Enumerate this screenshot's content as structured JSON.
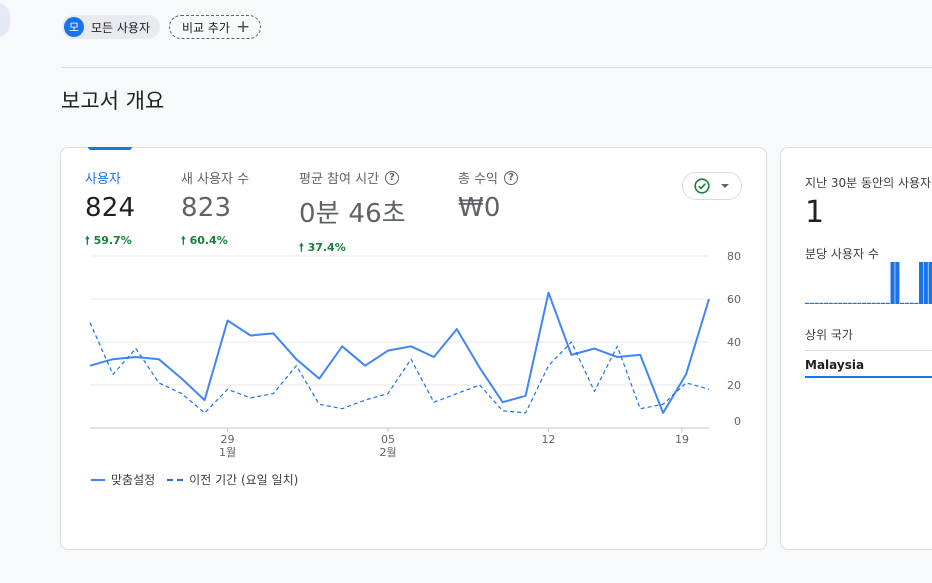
{
  "header": {
    "all_users_badge": "모",
    "all_users_label": "모든 사용자",
    "add_compare_label": "비교 추가",
    "add_compare_icon": "plus-icon"
  },
  "page_title": "보고서 개요",
  "metrics": [
    {
      "label": "사용자",
      "value": "824",
      "delta": "59.7%"
    },
    {
      "label": "새 사용자 수",
      "value": "823",
      "delta": "60.4%"
    },
    {
      "label": "평균 참여 시간",
      "value": "0분 46초",
      "delta": "37.4%"
    },
    {
      "label": "총 수익",
      "value": "₩0"
    }
  ],
  "status_icons": {
    "check": "check-circle-icon",
    "dropdown": "caret-down-icon"
  },
  "chart_data": {
    "type": "line",
    "x_tick_labels": [
      {
        "day": "29",
        "month": "1월"
      },
      {
        "day": "05",
        "month": "2월"
      },
      {
        "day": "12",
        "month": ""
      },
      {
        "day": "19",
        "month": ""
      }
    ],
    "y_ticks": [
      0,
      20,
      40,
      60,
      80
    ],
    "ylim": [
      0,
      80
    ],
    "x_range_days": [
      "01-23",
      "02-21"
    ],
    "series": [
      {
        "name": "맞춤설정",
        "style": "solid",
        "color": "#4285f4",
        "values": [
          29,
          32,
          33,
          32,
          23,
          13,
          50,
          43,
          44,
          32,
          23,
          38,
          29,
          36,
          38,
          33,
          46,
          28,
          12,
          15,
          63,
          34,
          37,
          33,
          34,
          7,
          25,
          60
        ]
      },
      {
        "name": "이전 기간 (요일 일치)",
        "style": "dashed",
        "color": "#1a73e8",
        "values": [
          49,
          25,
          37,
          21,
          16,
          7,
          18,
          14,
          16,
          29,
          11,
          9,
          13,
          16,
          32,
          12,
          16,
          20,
          8,
          7,
          29,
          40,
          17,
          38,
          9,
          11,
          21,
          18
        ]
      }
    ]
  },
  "legend": {
    "current": "맞춤설정",
    "previous": "이전 기간 (요일 일치)"
  },
  "realtime": {
    "title": "지난 30분 동안의 사용자",
    "value": "1",
    "per_minute_label": "분당 사용자 수",
    "top_country_label": "상위 국가",
    "top_country": "Malaysia",
    "per_minute_values": [
      0,
      0,
      0,
      0,
      0,
      0,
      0,
      0,
      0,
      0,
      0,
      0,
      0,
      0,
      0,
      0,
      0,
      0,
      1,
      1,
      0,
      0,
      0,
      0,
      1,
      1,
      1,
      1,
      0,
      0
    ]
  }
}
